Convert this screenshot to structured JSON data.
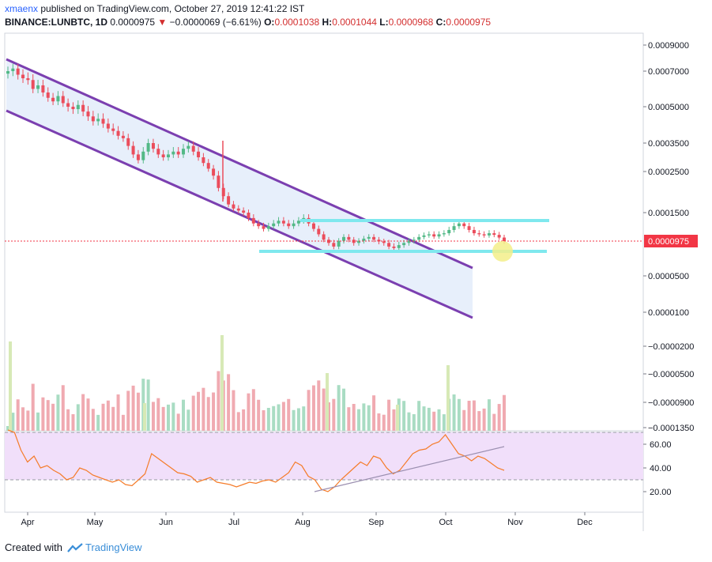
{
  "header": {
    "author": "xmaenx",
    "published_text": "published on TradingView.com, October 27, 2019 12:41:22 IST",
    "symbol": "BINANCE:LUNBTC, 1D",
    "price": "0.0000975",
    "change_arrow": "▼",
    "change": "−0.0000069 (−6.61%)",
    "o_label": "O:",
    "o_val": "0.0001038",
    "h_label": "H:",
    "h_val": "0.0001044",
    "l_label": "L:",
    "l_val": "0.0000968",
    "c_label": "C:",
    "c_val": "0.0000975"
  },
  "footer": {
    "created_with": "Created with",
    "brand": "TradingView"
  },
  "colors": {
    "up": "#53b987",
    "down": "#eb4d5c",
    "channel": "#7b3fb0",
    "channel_fill": "#e3ecfa",
    "support": "#7fe8ee",
    "rsi_band": "#f1dffa",
    "rsi_line": "#f57c2a",
    "last_price": "#f23645",
    "highlight": "#f3ef8a"
  },
  "chart_data": {
    "type": "candlestick",
    "symbol": "BINANCE:LUNBTC",
    "interval": "1D",
    "last_price": 9.75e-05,
    "price_axis": {
      "ticks": [
        "0.0009000",
        "0.0007000",
        "0.0005000",
        "0.0003500",
        "0.0002500",
        "0.0001500",
        "0.0000975",
        "0.0000500",
        "0.0000100",
        "−0.0000200",
        "−0.0000500",
        "−0.0000900",
        "−0.0001350"
      ]
    },
    "time_axis": {
      "ticks": [
        "Apr",
        "May",
        "Jun",
        "Jul",
        "Aug",
        "Sep",
        "Oct",
        "Nov",
        "Dec"
      ]
    },
    "rsi": {
      "ticks": [
        "60.00",
        "40.00",
        "20.00"
      ],
      "upper_band": 70,
      "lower_band": 30,
      "last": 38
    },
    "closes": [
      0.0007,
      0.00072,
      0.00068,
      0.00066,
      0.00065,
      0.0006,
      0.00062,
      0.00058,
      0.00055,
      0.00053,
      0.00056,
      0.00052,
      0.0005,
      0.00049,
      0.00051,
      0.00048,
      0.00046,
      0.00044,
      0.00045,
      0.00043,
      0.00041,
      0.0004,
      0.00038,
      0.00037,
      0.00034,
      0.00031,
      0.00029,
      0.00032,
      0.00035,
      0.00033,
      0.00031,
      0.0003,
      0.00031,
      0.00032,
      0.00031,
      0.00033,
      0.00034,
      0.00032,
      0.0003,
      0.00028,
      0.00026,
      0.00024,
      0.00021,
      0.00019,
      0.00017,
      0.00016,
      0.000155,
      0.00015,
      0.00014,
      0.00013,
      0.000125,
      0.00012,
      0.000125,
      0.00013,
      0.000135,
      0.00013,
      0.000125,
      0.00013,
      0.000135,
      0.00014,
      0.00013,
      0.00012,
      0.00011,
      0.0001,
      9.5e-05,
      9e-05,
      9.8e-05,
      0.000105,
      0.0001,
      9.5e-05,
      9.8e-05,
      0.000102,
      0.000105,
      0.0001,
      9.7e-05,
      9.5e-05,
      9e-05,
      8.8e-05,
      9.2e-05,
      9.5e-05,
      9.8e-05,
      0.0001,
      0.000105,
      0.000108,
      0.00011,
      0.000106,
      0.00011,
      0.000112,
      0.000118,
      0.000125,
      0.00013,
      0.000125,
      0.000118,
      0.000112,
      0.00011,
      0.000108,
      0.000112,
      0.000109,
      0.000104,
      9.75e-05
    ],
    "rsi_values": [
      72,
      70,
      55,
      45,
      50,
      40,
      42,
      38,
      35,
      30,
      32,
      40,
      38,
      34,
      32,
      30,
      28,
      30,
      26,
      25,
      30,
      35,
      52,
      48,
      44,
      40,
      36,
      35,
      33,
      28,
      30,
      32,
      28,
      27,
      26,
      24,
      26,
      28,
      27,
      29,
      30,
      28,
      32,
      36,
      45,
      42,
      33,
      30,
      22,
      20,
      24,
      30,
      35,
      40,
      45,
      42,
      50,
      48,
      40,
      35,
      38,
      45,
      52,
      55,
      56,
      60,
      62,
      68,
      60,
      52,
      50,
      46,
      50,
      48,
      44,
      40,
      38
    ]
  }
}
